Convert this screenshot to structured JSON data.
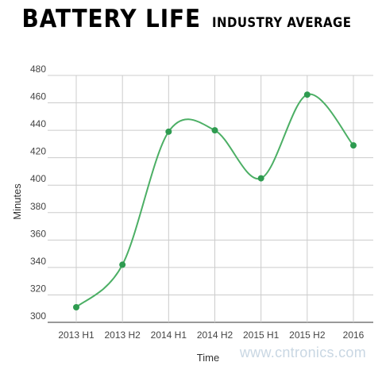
{
  "title": {
    "main": "BATTERY LIFE",
    "sub": "INDUSTRY AVERAGE"
  },
  "watermark": "www.cntronics.com",
  "colors": {
    "line": "#4caf65",
    "point": "#2e9b50",
    "grid": "#cccccc",
    "axis": "#333333"
  },
  "chart_data": {
    "type": "line",
    "categories": [
      "2013 H1",
      "2013 H2",
      "2014 H1",
      "2014 H2",
      "2015 H1",
      "2015 H2",
      "2016"
    ],
    "series": [
      {
        "values": [
          311,
          342,
          439,
          440,
          405,
          466,
          429
        ]
      }
    ],
    "xlabel": "Time",
    "ylabel": "Minutes",
    "ylim": [
      300,
      480
    ],
    "yticks": [
      300,
      320,
      340,
      360,
      380,
      400,
      420,
      440,
      460,
      480
    ],
    "grid": true,
    "smooth": true
  }
}
